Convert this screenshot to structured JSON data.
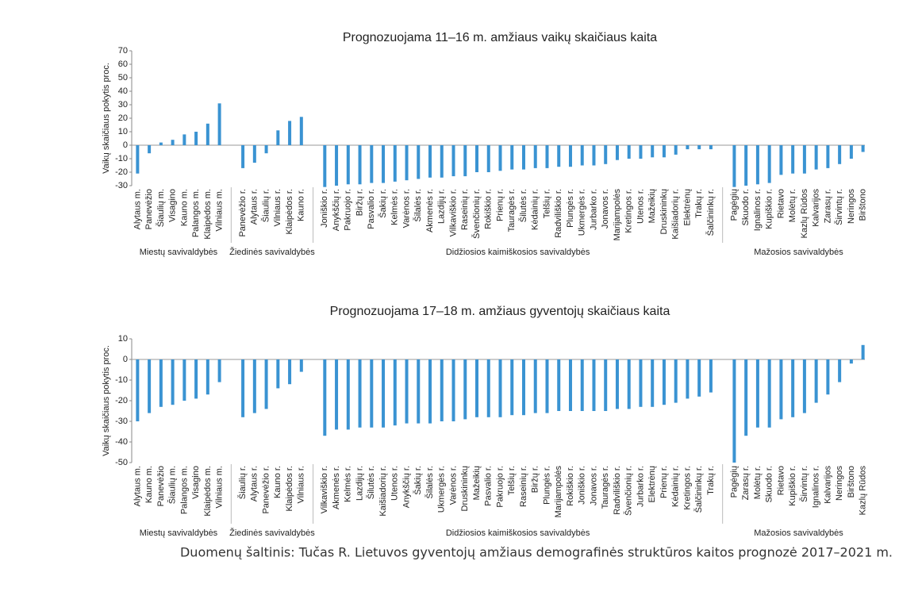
{
  "chart_data": [
    {
      "type": "bar",
      "title": "Prognozuojama 11–16 m. amžiaus vaikų skaičiaus kaita",
      "y_label": "Vaikų skaičiaus pokytis proc.",
      "color": "#3a93d2",
      "ylim": [
        -30,
        70
      ],
      "yticks": [
        -30,
        -20,
        -10,
        0,
        10,
        20,
        30,
        40,
        50,
        60,
        70
      ],
      "groups": [
        {
          "label": "Miestų savivaldybės",
          "categories": [
            "Alytaus m.",
            "Panevėžio",
            "Šiaulių m.",
            "Visagino",
            "Kauno m.",
            "Palangos m.",
            "Klaipėdos m.",
            "Vilniaus m."
          ],
          "values": [
            -21,
            -6,
            2,
            4,
            8,
            10,
            16,
            31
          ]
        },
        {
          "label": "Žiedinės savivaldybės",
          "categories": [
            "Panevėžio r.",
            "Alytaus r.",
            "Šiaulių r.",
            "Vilniaus r.",
            "Klaipėdos r.",
            "Kauno r."
          ],
          "values": [
            -17,
            -13,
            -6,
            11,
            18,
            21
          ]
        },
        {
          "label": "Didžiosios kaimiškosios savivaldybės",
          "categories": [
            "Joniškio r.",
            "Anykščių r.",
            "Pakruojo r.",
            "Biržų r.",
            "Pasvalio r.",
            "Šakių r.",
            "Kelmės r.",
            "Varėnos r.",
            "Šilalės r.",
            "Akmenės r.",
            "Lazdijų r.",
            "Vilkaviškio r.",
            "Raseinių r.",
            "Švenčionių r.",
            "Rokiškio r.",
            "Prienų r.",
            "Tauragės r.",
            "Šilutės r.",
            "Kėdainių r.",
            "Telšių r.",
            "Radviliškio r.",
            "Plungės r.",
            "Ukmergės r.",
            "Jurbarko r.",
            "Jonavos r.",
            "Marijampolės",
            "Kretingos r.",
            "Utenos r.",
            "Mažeikių",
            "Druskininkų",
            "Kaišiadorių r.",
            "Elektrėnų",
            "Trakų r.",
            "Šalčininkų r."
          ],
          "values": [
            -31,
            -30,
            -29,
            -29,
            -28,
            -28,
            -27,
            -26,
            -25,
            -24,
            -24,
            -23,
            -23,
            -20,
            -20,
            -19,
            -18,
            -18,
            -17,
            -17,
            -16,
            -16,
            -15,
            -15,
            -14,
            -11,
            -10,
            -10,
            -9,
            -9,
            -7,
            -3,
            -3,
            -3
          ]
        },
        {
          "label": "Mažosios savivaldybės",
          "categories": [
            "Pagėgių",
            "Skuodo r.",
            "Ignalinos r.",
            "Kupiškio r.",
            "Rietavo",
            "Molėtų r.",
            "Kazlų Rūdos",
            "Kalvarijos",
            "Zarasų r.",
            "Širvintų r.",
            "Neringos",
            "Birštono"
          ],
          "values": [
            -31,
            -30,
            -29,
            -28,
            -22,
            -21,
            -21,
            -18,
            -17,
            -14,
            -10,
            -5
          ]
        }
      ]
    },
    {
      "type": "bar",
      "title": "Prognozuojama 17–18 m. amžiaus gyventojų skaičiaus kaita",
      "y_label": "Vaikų skaičiaus pokytis proc.",
      "color": "#3a93d2",
      "ylim": [
        -50,
        10
      ],
      "yticks": [
        -50,
        -40,
        -30,
        -20,
        -10,
        0,
        10
      ],
      "groups": [
        {
          "label": "Miestų savivaldybės",
          "categories": [
            "Alytaus m.",
            "Kauno m.",
            "Panevėžio",
            "Šiaulių m.",
            "Palangos m.",
            "Visagino",
            "Klaipėdos m.",
            "Vilniaus m."
          ],
          "values": [
            -30,
            -26,
            -23,
            -22,
            -20,
            -19,
            -17,
            -11
          ]
        },
        {
          "label": "Žiedinės savivaldybės",
          "categories": [
            "Šiaulių r.",
            "Alytaus r.",
            "Panevėžio r.",
            "Kauno r.",
            "Klaipėdos r.",
            "Vilniaus r."
          ],
          "values": [
            -28,
            -26,
            -24,
            -14,
            -12,
            -6
          ]
        },
        {
          "label": "Didžiosios kaimiškosios savivaldybės",
          "categories": [
            "Vilkaviškio r.",
            "Akmenės r.",
            "Kelmės r.",
            "Lazdijų r.",
            "Šilutės r.",
            "Kaišiadorių r.",
            "Utenos r.",
            "Anykščių r.",
            "Šakių r.",
            "Šilalės r.",
            "Ukmergės r.",
            "Varėnos r.",
            "Druskininkų",
            "Mažeikių",
            "Pasvalio r.",
            "Pakruojo r.",
            "Telšių r.",
            "Raseinių r.",
            "Biržų r.",
            "Plungės r.",
            "Marijampolės",
            "Rokiškio r.",
            "Joniškio r.",
            "Jonavos r.",
            "Tauragės r.",
            "Radviliškio r.",
            "Švenčionių r.",
            "Jurbarko r.",
            "Elektrėnų",
            "Prienų r.",
            "Kėdainių r.",
            "Kretingos r.",
            "Šalčininkų r.",
            "Trakų r."
          ],
          "values": [
            -37,
            -34,
            -34,
            -33,
            -33,
            -33,
            -32,
            -31,
            -31,
            -31,
            -30,
            -30,
            -29,
            -28,
            -28,
            -28,
            -27,
            -27,
            -26,
            -26,
            -25,
            -25,
            -25,
            -25,
            -25,
            -24,
            -24,
            -23,
            -23,
            -22,
            -21,
            -19,
            -18,
            -16
          ]
        },
        {
          "label": "Mažosios savivaldybės",
          "categories": [
            "Pagėgių",
            "Zarasų r.",
            "Molėtų r.",
            "Skuodo r.",
            "Rietavo",
            "Kupiškio r.",
            "Širvintų r.",
            "Ignalinos r.",
            "Kalvarijos",
            "Neringos",
            "Birštono",
            "Kazlų Rūdos"
          ],
          "values": [
            -50,
            -37,
            -33,
            -33,
            -29,
            -28,
            -26,
            -21,
            -17,
            -11,
            -2,
            7
          ]
        }
      ]
    }
  ],
  "source": "Duomenų šaltinis: Tučas R. Lietuvos gyventojų amžiaus demografinės struktūros kaitos prognozė 2017–2021 m."
}
